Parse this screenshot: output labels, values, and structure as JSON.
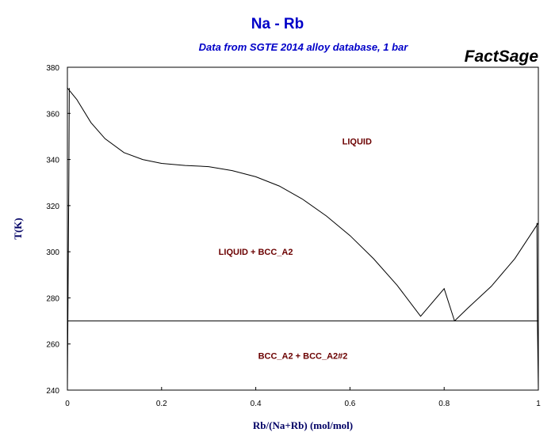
{
  "header": {
    "title": "Na - Rb",
    "subtitle": "Data from SGTE 2014 alloy database, 1 bar",
    "brand": "FactSage"
  },
  "chart_data": {
    "type": "line",
    "title": "Na - Rb",
    "subtitle": "Data from SGTE 2014 alloy database, 1 bar",
    "xlabel": "Rb/(Na+Rb) (mol/mol)",
    "ylabel": "T(K)",
    "xlim": [
      0,
      1
    ],
    "ylim": [
      240,
      380
    ],
    "x_ticks": [
      0,
      0.2,
      0.4,
      0.6,
      0.8,
      1
    ],
    "x_tick_labels": [
      "0",
      "0.2",
      "0.4",
      "0.6",
      "0.8",
      "1"
    ],
    "y_ticks": [
      240,
      260,
      280,
      300,
      320,
      340,
      360,
      380
    ],
    "y_tick_labels": [
      "240",
      "260",
      "280",
      "300",
      "320",
      "340",
      "360",
      "380"
    ],
    "grid": false,
    "series": [
      {
        "x": [
          0,
          0.02,
          0.05,
          0.08,
          0.12,
          0.16,
          0.2,
          0.25,
          0.3,
          0.35,
          0.4,
          0.45,
          0.5,
          0.55,
          0.6,
          0.65,
          0.7,
          0.75,
          0.8,
          0.822
        ],
        "y": [
          371,
          366,
          356,
          349,
          343,
          340,
          338.3,
          337.4,
          336.9,
          335.2,
          332.5,
          328.5,
          322.7,
          315.5,
          307,
          297,
          285.5,
          272,
          284,
          270
        ]
      },
      {
        "x": [
          0.822,
          0.85,
          0.9,
          0.95,
          1
        ],
        "y": [
          270,
          275.5,
          285,
          297,
          312.5
        ]
      },
      {
        "x": [
          0,
          1
        ],
        "y": [
          270,
          270
        ]
      },
      {
        "x": [
          0.004,
          0.003,
          0.001,
          0
        ],
        "y": [
          371,
          330,
          270,
          240
        ]
      },
      {
        "x": [
          0.997,
          0.998,
          1
        ],
        "y": [
          312.5,
          270,
          240
        ]
      }
    ],
    "annotations": [
      {
        "text": "LIQUID",
        "x": 0.615,
        "y": 348
      },
      {
        "text": "LIQUID + BCC_A2",
        "x": 0.4,
        "y": 300
      },
      {
        "text": "BCC_A2 + BCC_A2#2",
        "x": 0.5,
        "y": 255
      }
    ]
  }
}
